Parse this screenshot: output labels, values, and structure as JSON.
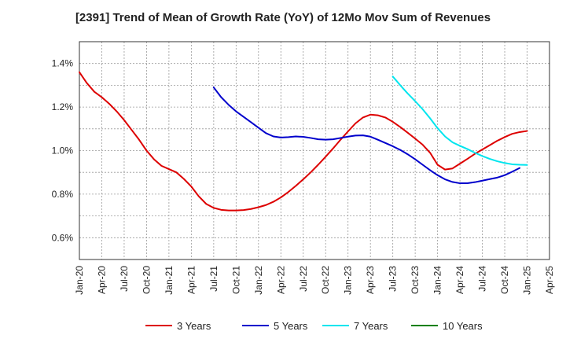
{
  "chart_data": {
    "type": "line",
    "title": "[2391]  Trend of Mean of Growth Rate (YoY) of 12Mo Mov Sum of Revenues",
    "xlabel": "",
    "ylabel": "",
    "ylim": [
      0.5,
      1.5
    ],
    "yticks": [
      0.6,
      0.8,
      1.0,
      1.2,
      1.4
    ],
    "ytick_labels": [
      "0.6%",
      "0.8%",
      "1.0%",
      "1.2%",
      "1.4%"
    ],
    "xtick_labels": [
      "Jan-20",
      "Apr-20",
      "Jul-20",
      "Oct-20",
      "Jan-21",
      "Apr-21",
      "Jul-21",
      "Oct-21",
      "Jan-22",
      "Apr-22",
      "Jul-22",
      "Oct-22",
      "Jan-23",
      "Apr-23",
      "Jul-23",
      "Oct-23",
      "Jan-24",
      "Apr-24",
      "Jul-24",
      "Oct-24",
      "Jan-25",
      "Apr-25"
    ],
    "x_start": "Jan-20",
    "grid": true,
    "legend_position": "bottom",
    "series": [
      {
        "name": "3 Years",
        "color": "#dd0000",
        "start_index": 0,
        "values": [
          1.36,
          1.31,
          1.27,
          1.245,
          1.215,
          1.18,
          1.14,
          1.095,
          1.05,
          1.0,
          0.96,
          0.93,
          0.915,
          0.9,
          0.87,
          0.835,
          0.79,
          0.755,
          0.737,
          0.728,
          0.725,
          0.725,
          0.727,
          0.732,
          0.74,
          0.75,
          0.765,
          0.785,
          0.81,
          0.838,
          0.868,
          0.9,
          0.935,
          0.972,
          1.01,
          1.05,
          1.088,
          1.125,
          1.152,
          1.165,
          1.162,
          1.152,
          1.132,
          1.108,
          1.082,
          1.055,
          1.027,
          0.99,
          0.935,
          0.913,
          0.918,
          0.94,
          0.962,
          0.985,
          1.005,
          1.025,
          1.045,
          1.062,
          1.077,
          1.085,
          1.09
        ]
      },
      {
        "name": "5 Years",
        "color": "#0000cc",
        "start_index": 18,
        "values": [
          1.29,
          1.245,
          1.21,
          1.18,
          1.155,
          1.13,
          1.105,
          1.08,
          1.065,
          1.06,
          1.062,
          1.065,
          1.063,
          1.058,
          1.052,
          1.05,
          1.052,
          1.058,
          1.064,
          1.069,
          1.07,
          1.064,
          1.05,
          1.035,
          1.02,
          1.003,
          0.983,
          0.96,
          0.935,
          0.91,
          0.887,
          0.868,
          0.856,
          0.85,
          0.85,
          0.855,
          0.862,
          0.869,
          0.876,
          0.887,
          0.903,
          0.92
        ]
      },
      {
        "name": "7 Years",
        "color": "#00e5ee",
        "start_index": 42,
        "values": [
          1.34,
          1.3,
          1.262,
          1.227,
          1.19,
          1.148,
          1.103,
          1.065,
          1.038,
          1.022,
          1.007,
          0.99,
          0.975,
          0.962,
          0.951,
          0.943,
          0.937,
          0.935,
          0.934
        ]
      },
      {
        "name": "10 Years",
        "color": "#008000",
        "start_index": 0,
        "values": []
      }
    ]
  }
}
